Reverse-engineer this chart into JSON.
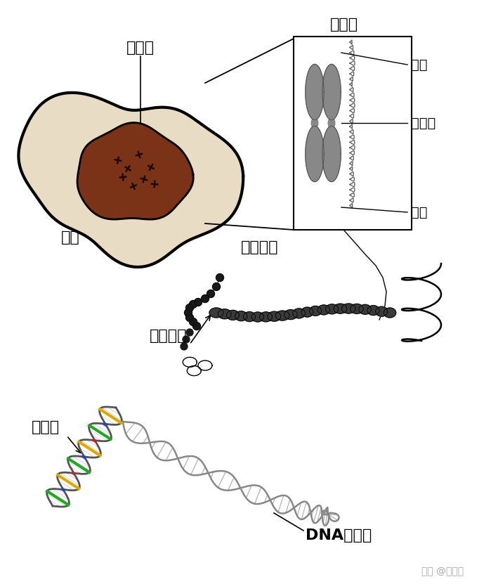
{
  "bg_color": "#ffffff",
  "labels": {
    "cell": "細胞",
    "nucleus": "細胞核",
    "chromosome": "染色体",
    "telomere_top": "端粒",
    "centromere": "着丝粒",
    "telomere_bot": "端粒",
    "chromatid": "染色分体",
    "histone": "组织蛋白",
    "base_pair": "碱基对",
    "dna": "DNA双螺旋",
    "watermark": "知乎 @小健健"
  },
  "cell_color": "#e8dcc5",
  "nucleus_color": "#7b3318",
  "chromosome_color": "#888888",
  "line_color": "#000000",
  "font_size_large": 16,
  "font_size_med": 14,
  "font_size_small": 10
}
